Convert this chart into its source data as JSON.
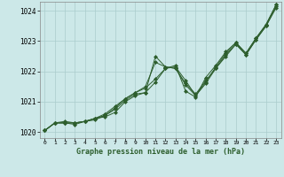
{
  "title": "Graphe pression niveau de la mer (hPa)",
  "bg_color": "#cce8e8",
  "grid_color": "#aacccc",
  "line_color": "#2d5e2d",
  "marker": "D",
  "xlim": [
    -0.5,
    23.5
  ],
  "ylim": [
    1019.8,
    1024.3
  ],
  "yticks": [
    1020,
    1021,
    1022,
    1023,
    1024
  ],
  "xticks": [
    0,
    1,
    2,
    3,
    4,
    5,
    6,
    7,
    8,
    9,
    10,
    11,
    12,
    13,
    14,
    15,
    16,
    17,
    18,
    19,
    20,
    21,
    22,
    23
  ],
  "series": [
    [
      1020.05,
      1020.3,
      1020.35,
      1020.3,
      1020.35,
      1020.45,
      1020.5,
      1020.65,
      1021.0,
      1021.2,
      1021.3,
      1021.65,
      1022.1,
      1022.15,
      1021.7,
      1021.2,
      1021.6,
      1022.1,
      1022.5,
      1022.9,
      1022.55,
      1023.05,
      1023.5,
      1024.15
    ],
    [
      1020.05,
      1020.3,
      1020.3,
      1020.3,
      1020.35,
      1020.4,
      1020.55,
      1020.75,
      1021.05,
      1021.25,
      1021.3,
      1022.5,
      1022.15,
      1022.1,
      1021.6,
      1021.25,
      1021.7,
      1022.1,
      1022.55,
      1022.9,
      1022.55,
      1023.05,
      1023.5,
      1024.1
    ],
    [
      1020.05,
      1020.3,
      1020.3,
      1020.25,
      1020.35,
      1020.45,
      1020.55,
      1020.8,
      1021.1,
      1021.3,
      1021.45,
      1021.75,
      1022.1,
      1022.2,
      1021.35,
      1021.15,
      1021.8,
      1022.2,
      1022.65,
      1022.95,
      1022.6,
      1023.1,
      1023.55,
      1024.2
    ],
    [
      1020.05,
      1020.3,
      1020.3,
      1020.3,
      1020.35,
      1020.45,
      1020.6,
      1020.85,
      1021.1,
      1021.3,
      1021.5,
      1022.3,
      1022.15,
      1022.1,
      1021.55,
      1021.2,
      1021.65,
      1022.15,
      1022.6,
      1022.95,
      1022.6,
      1023.1,
      1023.55,
      1024.2
    ]
  ]
}
